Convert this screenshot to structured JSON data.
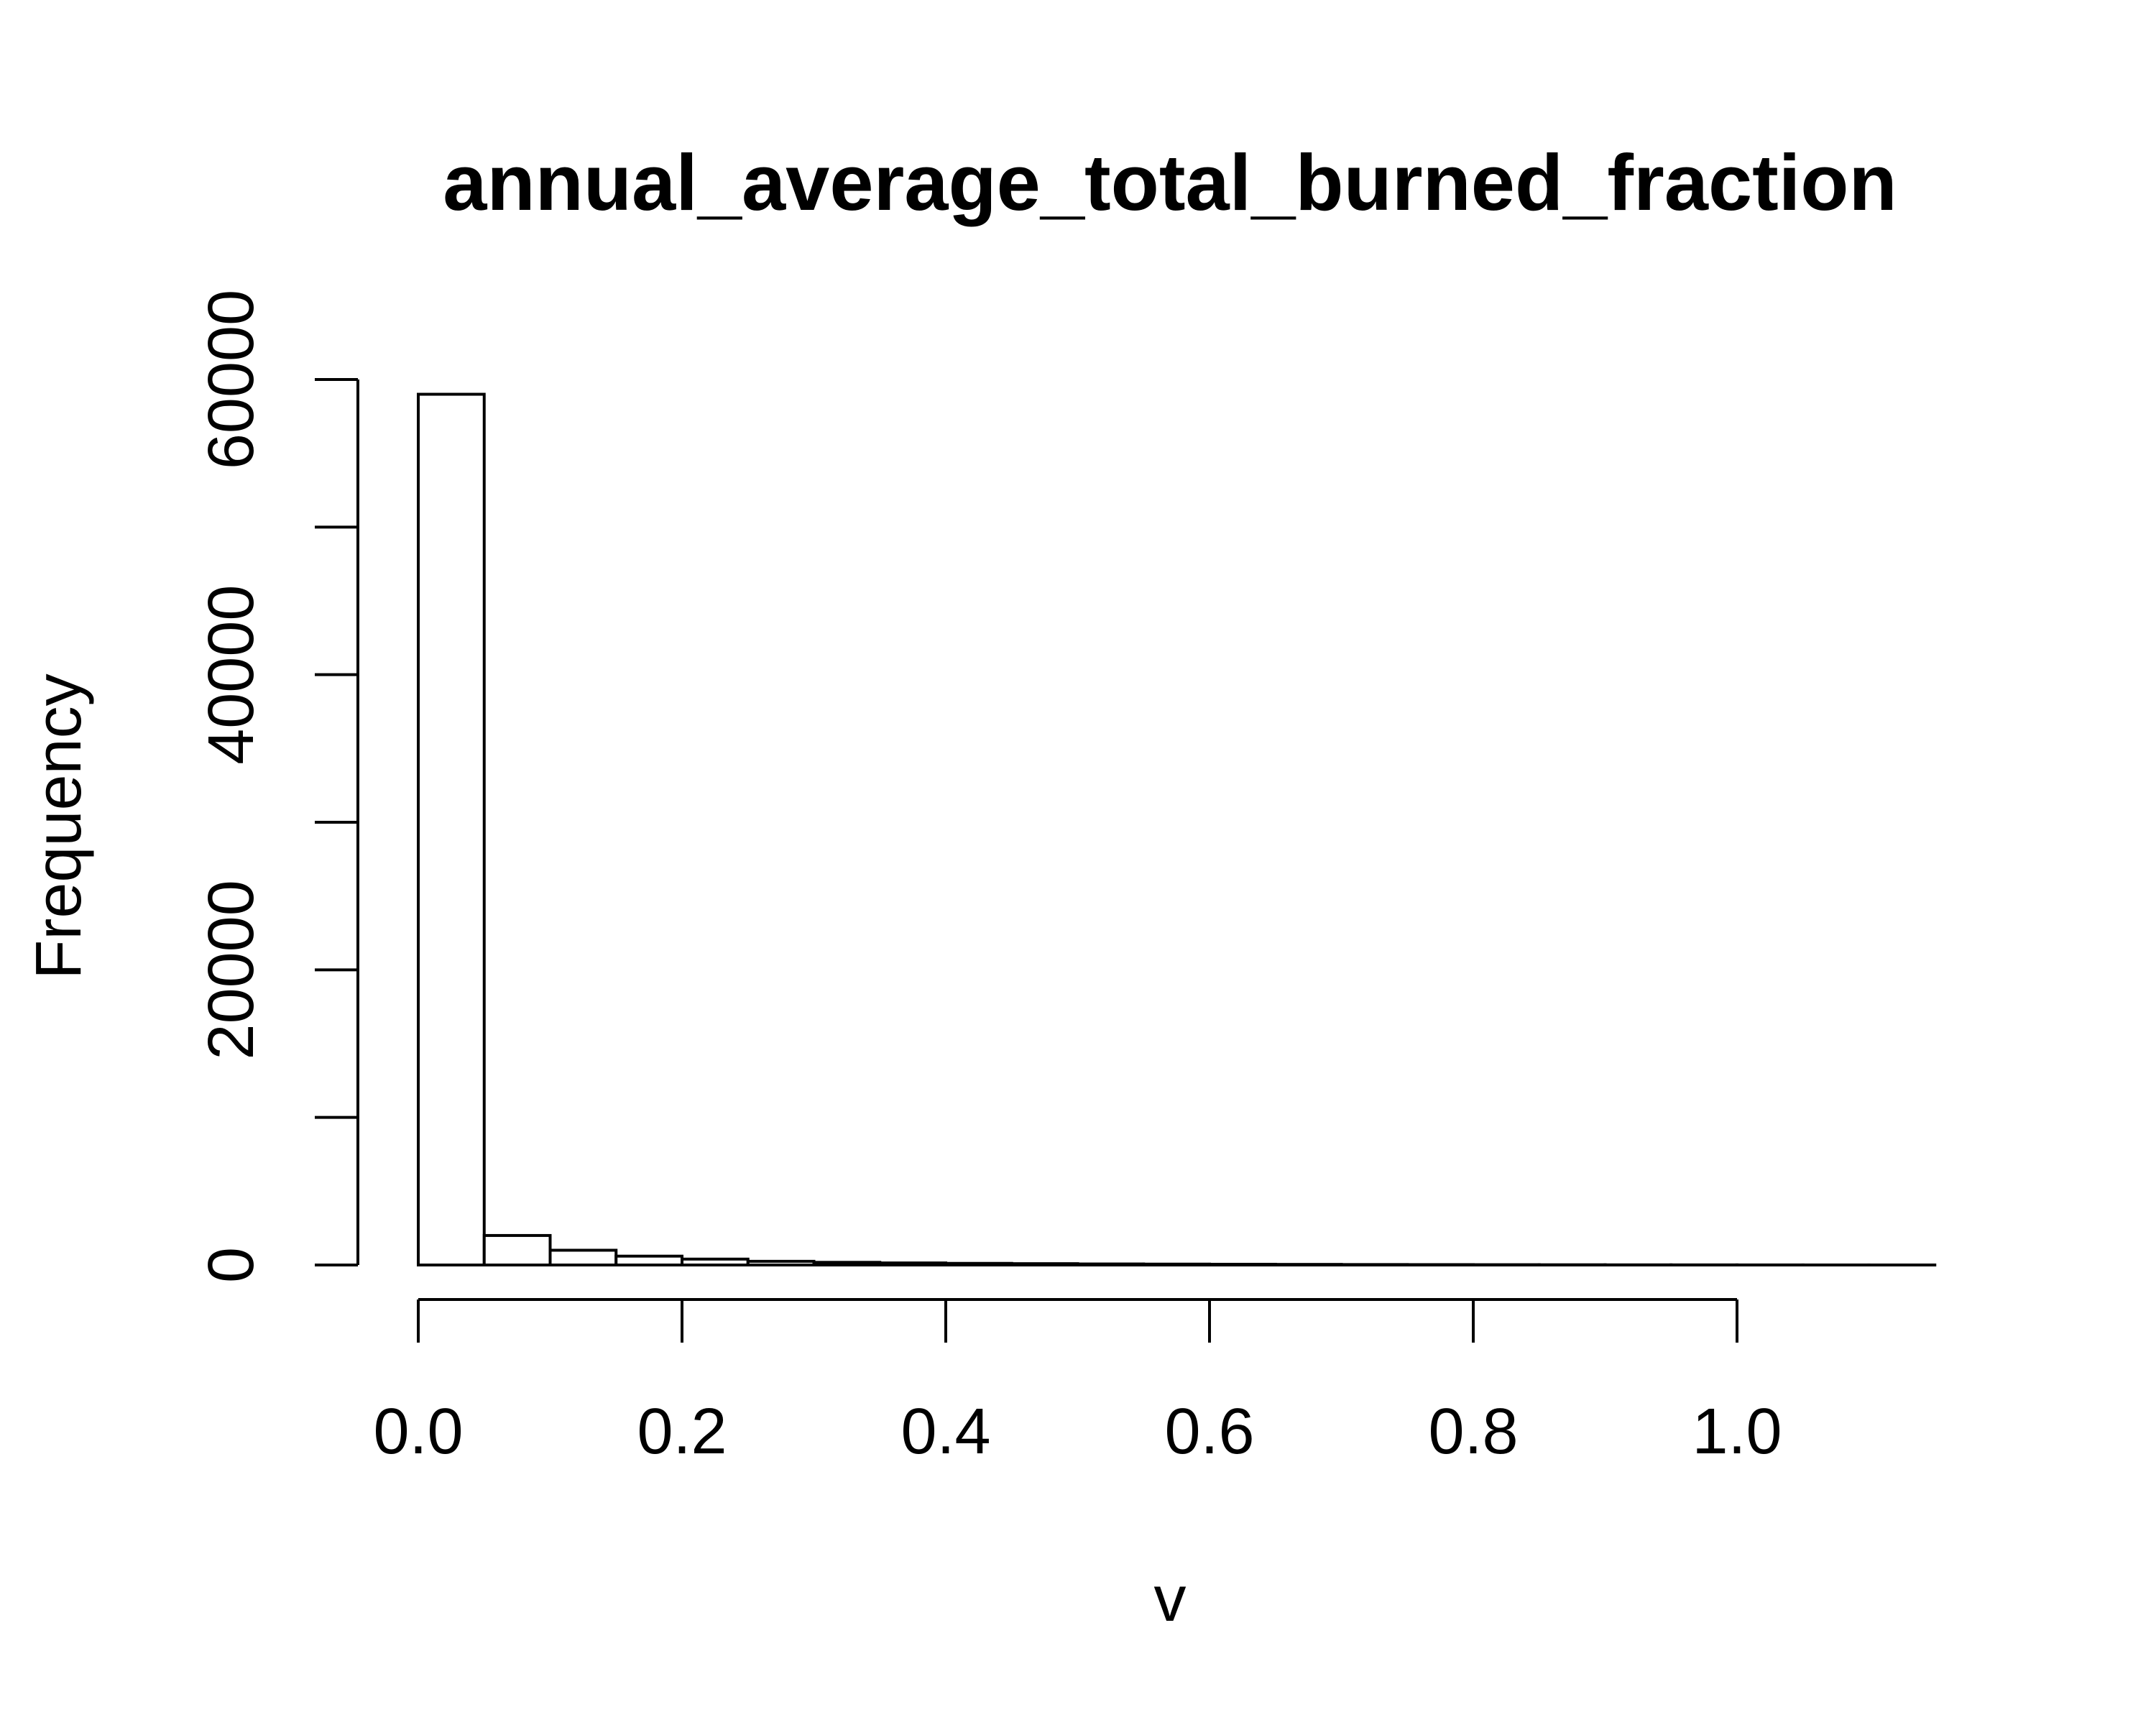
{
  "chart_data": {
    "type": "bar",
    "title": "annual_average_total_burned_fraction",
    "xlabel": "v",
    "ylabel": "Frequency",
    "bin_width": 0.05,
    "bins": [
      {
        "x0": 0.0,
        "x1": 0.05,
        "count": 59000
      },
      {
        "x0": 0.05,
        "x1": 0.1,
        "count": 2000
      },
      {
        "x0": 0.1,
        "x1": 0.15,
        "count": 1000
      },
      {
        "x0": 0.15,
        "x1": 0.2,
        "count": 600
      },
      {
        "x0": 0.2,
        "x1": 0.25,
        "count": 400
      },
      {
        "x0": 0.25,
        "x1": 0.3,
        "count": 250
      },
      {
        "x0": 0.3,
        "x1": 0.35,
        "count": 180
      },
      {
        "x0": 0.35,
        "x1": 0.4,
        "count": 140
      },
      {
        "x0": 0.4,
        "x1": 0.45,
        "count": 110
      },
      {
        "x0": 0.45,
        "x1": 0.5,
        "count": 90
      },
      {
        "x0": 0.5,
        "x1": 0.55,
        "count": 70
      },
      {
        "x0": 0.55,
        "x1": 0.6,
        "count": 60
      },
      {
        "x0": 0.6,
        "x1": 0.65,
        "count": 50
      },
      {
        "x0": 0.65,
        "x1": 0.7,
        "count": 40
      },
      {
        "x0": 0.7,
        "x1": 0.75,
        "count": 30
      },
      {
        "x0": 0.75,
        "x1": 0.8,
        "count": 25
      },
      {
        "x0": 0.8,
        "x1": 0.85,
        "count": 20
      },
      {
        "x0": 0.85,
        "x1": 0.9,
        "count": 15
      },
      {
        "x0": 0.9,
        "x1": 0.95,
        "count": 10
      },
      {
        "x0": 0.95,
        "x1": 1.0,
        "count": 8
      },
      {
        "x0": 1.0,
        "x1": 1.05,
        "count": 5
      },
      {
        "x0": 1.05,
        "x1": 1.1,
        "count": 3
      },
      {
        "x0": 1.1,
        "x1": 1.15,
        "count": 2
      }
    ],
    "x_ticks": [
      0.0,
      0.2,
      0.4,
      0.6,
      0.8,
      1.0
    ],
    "x_tick_labels": [
      "0.0",
      "0.2",
      "0.4",
      "0.6",
      "0.8",
      "1.0"
    ],
    "y_ticks": [
      0,
      10000,
      20000,
      30000,
      40000,
      50000,
      60000
    ],
    "y_tick_labels": [
      "0",
      "",
      "20000",
      "",
      "40000",
      "",
      "60000"
    ],
    "xlim": [
      0.0,
      1.15
    ],
    "ylim": [
      0,
      60000
    ],
    "grid": false,
    "legend": "none",
    "bar_fill": "#ffffff",
    "bar_stroke": "#000000"
  }
}
